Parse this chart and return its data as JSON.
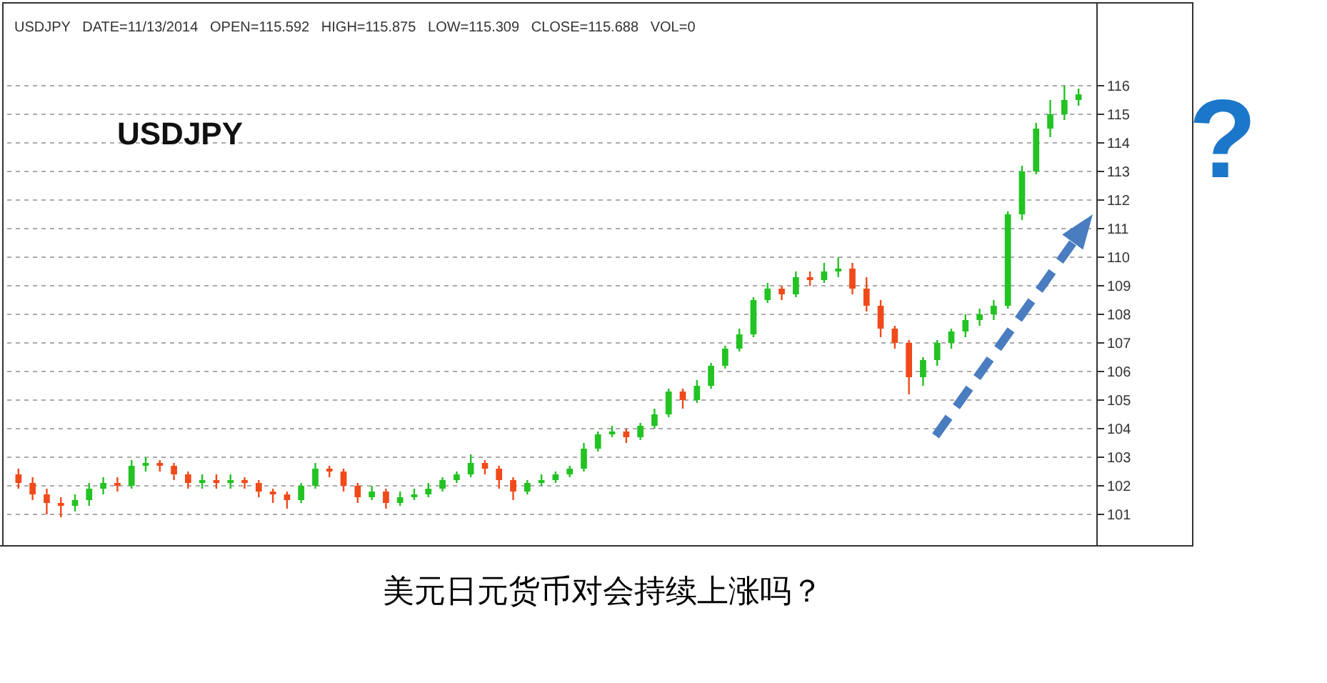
{
  "chart_data": {
    "type": "candlestick",
    "annotations": [
      "USDJPY   DATE=11/13/2014   OPEN=115.592   HIGH=115.875   LOW=115.309   CLOSE=115.688   VOL=0",
      "USDJPY",
      "?",
      "美元日元货币对会持续上涨吗？"
    ],
    "categories": [
      null,
      null,
      null,
      null,
      null,
      null,
      null,
      null,
      null,
      null,
      null,
      null,
      null,
      null,
      null,
      null,
      null,
      null,
      null,
      null,
      null,
      null,
      null,
      null,
      null,
      null,
      null,
      null,
      null,
      null,
      null,
      null,
      null,
      null,
      null,
      null,
      null,
      null,
      null,
      null,
      null,
      null,
      null,
      null,
      null,
      null,
      null,
      null,
      null,
      null,
      null,
      null,
      null,
      null,
      null,
      null,
      null,
      null,
      null,
      null,
      null,
      null,
      null,
      null,
      null,
      null,
      null,
      null,
      null,
      null,
      null,
      null,
      null,
      null,
      null,
      null
    ],
    "ohlc": [
      [
        102.4,
        102.6,
        101.9,
        102.1
      ],
      [
        102.1,
        102.3,
        101.5,
        101.7
      ],
      [
        101.7,
        101.9,
        101.0,
        101.4
      ],
      [
        101.4,
        101.6,
        100.9,
        101.3
      ],
      [
        101.3,
        101.7,
        101.1,
        101.5
      ],
      [
        101.5,
        102.1,
        101.3,
        101.9
      ],
      [
        101.9,
        102.3,
        101.7,
        102.1
      ],
      [
        102.1,
        102.3,
        101.8,
        102.0
      ],
      [
        102.0,
        102.9,
        101.9,
        102.7
      ],
      [
        102.7,
        103.0,
        102.5,
        102.8
      ],
      [
        102.8,
        102.9,
        102.5,
        102.7
      ],
      [
        102.7,
        102.8,
        102.2,
        102.4
      ],
      [
        102.4,
        102.5,
        101.9,
        102.1
      ],
      [
        102.1,
        102.4,
        101.9,
        102.2
      ],
      [
        102.2,
        102.4,
        101.9,
        102.1
      ],
      [
        102.1,
        102.4,
        101.9,
        102.2
      ],
      [
        102.2,
        102.3,
        101.9,
        102.1
      ],
      [
        102.1,
        102.2,
        101.6,
        101.8
      ],
      [
        101.8,
        101.9,
        101.4,
        101.7
      ],
      [
        101.7,
        101.8,
        101.2,
        101.5
      ],
      [
        101.5,
        102.1,
        101.4,
        102.0
      ],
      [
        102.0,
        102.8,
        101.9,
        102.6
      ],
      [
        102.6,
        102.7,
        102.3,
        102.5
      ],
      [
        102.5,
        102.6,
        101.8,
        102.0
      ],
      [
        102.0,
        102.1,
        101.4,
        101.6
      ],
      [
        101.6,
        102.0,
        101.5,
        101.8
      ],
      [
        101.8,
        101.9,
        101.2,
        101.4
      ],
      [
        101.4,
        101.8,
        101.3,
        101.6
      ],
      [
        101.6,
        101.9,
        101.5,
        101.7
      ],
      [
        101.7,
        102.1,
        101.6,
        101.9
      ],
      [
        101.9,
        102.3,
        101.8,
        102.2
      ],
      [
        102.2,
        102.5,
        102.1,
        102.4
      ],
      [
        102.4,
        103.1,
        102.3,
        102.8
      ],
      [
        102.8,
        102.9,
        102.4,
        102.6
      ],
      [
        102.6,
        102.7,
        101.9,
        102.2
      ],
      [
        102.2,
        102.3,
        101.5,
        101.8
      ],
      [
        101.8,
        102.2,
        101.7,
        102.1
      ],
      [
        102.1,
        102.4,
        102.0,
        102.2
      ],
      [
        102.2,
        102.5,
        102.1,
        102.4
      ],
      [
        102.4,
        102.7,
        102.3,
        102.6
      ],
      [
        102.6,
        103.5,
        102.5,
        103.3
      ],
      [
        103.3,
        103.9,
        103.2,
        103.8
      ],
      [
        103.8,
        104.1,
        103.7,
        103.9
      ],
      [
        103.9,
        104.0,
        103.5,
        103.7
      ],
      [
        103.7,
        104.2,
        103.6,
        104.1
      ],
      [
        104.1,
        104.7,
        104.0,
        104.5
      ],
      [
        104.5,
        105.4,
        104.4,
        105.3
      ],
      [
        105.3,
        105.4,
        104.7,
        105.0
      ],
      [
        105.0,
        105.7,
        104.9,
        105.5
      ],
      [
        105.5,
        106.3,
        105.4,
        106.2
      ],
      [
        106.2,
        106.9,
        106.1,
        106.8
      ],
      [
        106.8,
        107.5,
        106.7,
        107.3
      ],
      [
        107.3,
        108.6,
        107.2,
        108.5
      ],
      [
        108.5,
        109.1,
        108.4,
        108.9
      ],
      [
        108.9,
        109.0,
        108.5,
        108.7
      ],
      [
        108.7,
        109.5,
        108.6,
        109.3
      ],
      [
        109.3,
        109.5,
        109.0,
        109.2
      ],
      [
        109.2,
        109.8,
        109.1,
        109.5
      ],
      [
        109.5,
        110.0,
        109.3,
        109.6
      ],
      [
        109.6,
        109.8,
        108.7,
        108.9
      ],
      [
        108.9,
        109.3,
        108.1,
        108.3
      ],
      [
        108.3,
        108.5,
        107.2,
        107.5
      ],
      [
        107.5,
        107.6,
        106.8,
        107.0
      ],
      [
        107.0,
        107.1,
        105.2,
        105.8
      ],
      [
        105.8,
        106.5,
        105.5,
        106.4
      ],
      [
        106.4,
        107.1,
        106.2,
        107.0
      ],
      [
        107.0,
        107.5,
        106.8,
        107.4
      ],
      [
        107.4,
        108.0,
        107.2,
        107.8
      ],
      [
        107.8,
        108.2,
        107.6,
        108.0
      ],
      [
        108.0,
        108.5,
        107.8,
        108.3
      ],
      [
        108.3,
        111.6,
        108.2,
        111.5
      ],
      [
        111.5,
        113.2,
        111.3,
        113.0
      ],
      [
        113.0,
        114.7,
        112.9,
        114.5
      ],
      [
        114.5,
        115.5,
        114.2,
        115.0
      ],
      [
        115.0,
        116.0,
        114.8,
        115.5
      ],
      [
        115.5,
        115.9,
        115.3,
        115.7
      ]
    ],
    "ylim": [
      100,
      118.9
    ],
    "yticks": [
      101,
      102,
      103,
      104,
      105,
      106,
      107,
      108,
      109,
      110,
      111,
      112,
      113,
      114,
      115,
      116
    ],
    "grid": "y"
  }
}
